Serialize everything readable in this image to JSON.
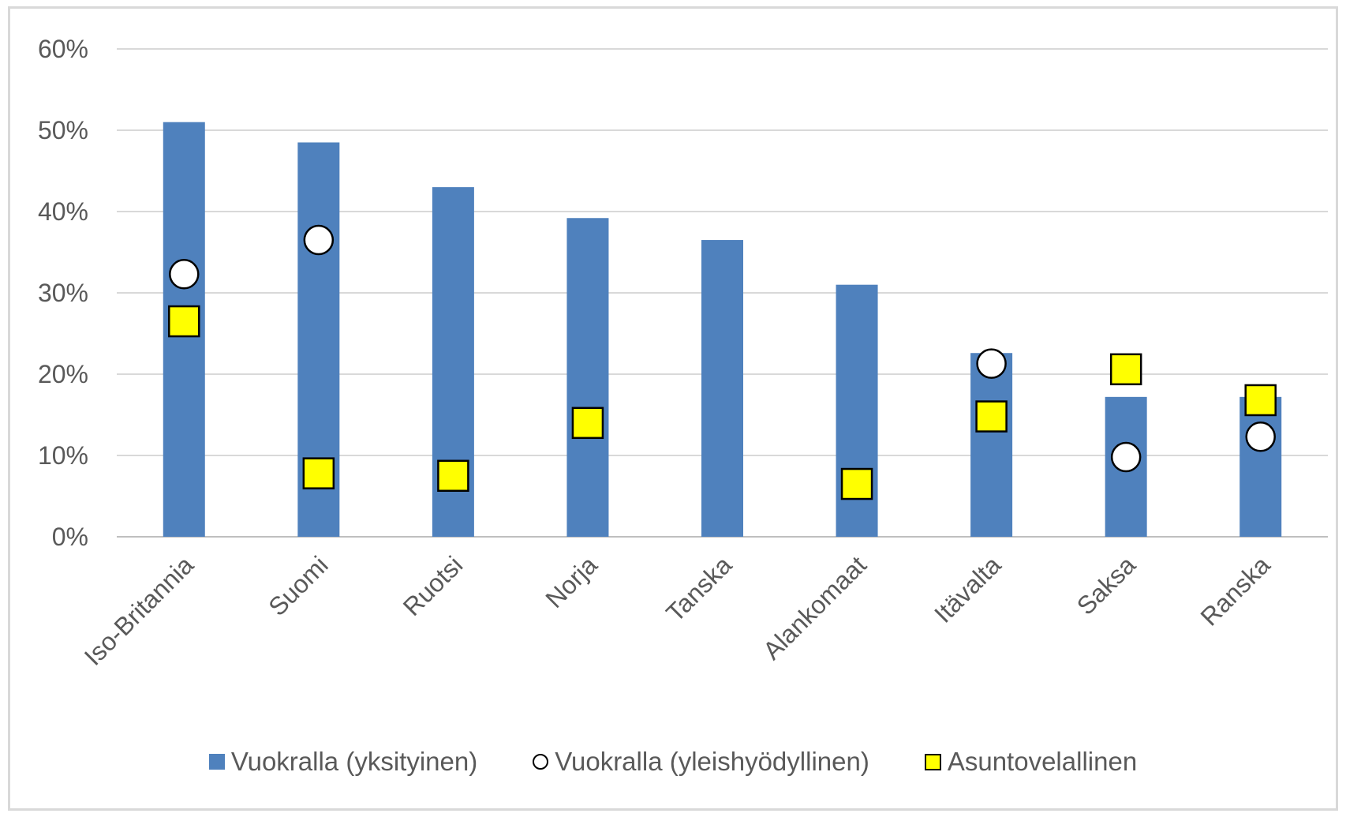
{
  "chart_data": {
    "type": "bar",
    "categories": [
      "Iso-Britannia",
      "Suomi",
      "Ruotsi",
      "Norja",
      "Tanska",
      "Alankomaat",
      "Itävalta",
      "Saksa",
      "Ranska"
    ],
    "series": [
      {
        "name": "Vuokralla (yksityinen)",
        "kind": "bar",
        "color": "#4F81BD",
        "values": [
          51,
          48.5,
          43,
          39.2,
          36.5,
          31,
          22.6,
          17.2,
          17.2
        ]
      },
      {
        "name": "Vuokralla (yleishyödyllinen)",
        "kind": "marker-circle",
        "color": "#FFFFFF",
        "values": [
          32.3,
          36.5,
          null,
          null,
          null,
          null,
          21.3,
          9.8,
          12.3
        ]
      },
      {
        "name": "Asuntovelallinen",
        "kind": "marker-square",
        "color": "#FFFF00",
        "values": [
          26.5,
          7.8,
          7.5,
          14,
          null,
          6.5,
          14.8,
          20.6,
          16.8
        ]
      }
    ],
    "y_ticks": [
      "0%",
      "10%",
      "20%",
      "30%",
      "40%",
      "50%",
      "60%"
    ],
    "ylim": [
      0,
      60
    ],
    "grid": true,
    "legend_position": "bottom"
  }
}
